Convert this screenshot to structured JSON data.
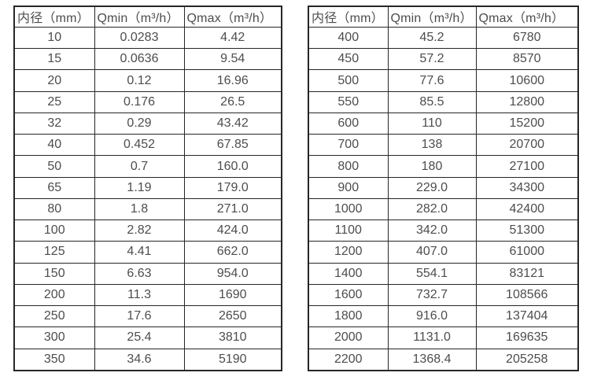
{
  "page": {
    "background": "#ffffff",
    "text_color": "#4d4d4d",
    "border_color": "#262626"
  },
  "chart_data": [
    {
      "type": "table",
      "name": "flow-rate-table-small-diameters",
      "columns": [
        "内径（mm）",
        "Qmin（m³/h）",
        "Qmax（m³/h）"
      ],
      "rows": [
        [
          "10",
          "0.0283",
          "4.42"
        ],
        [
          "15",
          "0.0636",
          "9.54"
        ],
        [
          "20",
          "0.12",
          "16.96"
        ],
        [
          "25",
          "0.176",
          "26.5"
        ],
        [
          "32",
          "0.29",
          "43.42"
        ],
        [
          "40",
          "0.452",
          "67.85"
        ],
        [
          "50",
          "0.7",
          "160.0"
        ],
        [
          "65",
          "1.19",
          "179.0"
        ],
        [
          "80",
          "1.8",
          "271.0"
        ],
        [
          "100",
          "2.82",
          "424.0"
        ],
        [
          "125",
          "4.41",
          "662.0"
        ],
        [
          "150",
          "6.63",
          "954.0"
        ],
        [
          "200",
          "11.3",
          "1690"
        ],
        [
          "250",
          "17.6",
          "2650"
        ],
        [
          "300",
          "25.4",
          "3810"
        ],
        [
          "350",
          "34.6",
          "5190"
        ]
      ]
    },
    {
      "type": "table",
      "name": "flow-rate-table-large-diameters",
      "columns": [
        "内径（mm）",
        "Qmin（m³/h）",
        "Qmax（m³/h）"
      ],
      "rows": [
        [
          "400",
          "45.2",
          "6780"
        ],
        [
          "450",
          "57.2",
          "8570"
        ],
        [
          "500",
          "77.6",
          "10600"
        ],
        [
          "550",
          "85.5",
          "12800"
        ],
        [
          "600",
          "110",
          "15200"
        ],
        [
          "700",
          "138",
          "20700"
        ],
        [
          "800",
          "180",
          "27100"
        ],
        [
          "900",
          "229.0",
          "34300"
        ],
        [
          "1000",
          "282.0",
          "42400"
        ],
        [
          "1100",
          "342.0",
          "51300"
        ],
        [
          "1200",
          "407.0",
          "61000"
        ],
        [
          "1400",
          "554.1",
          "83121"
        ],
        [
          "1600",
          "732.7",
          "108566"
        ],
        [
          "1800",
          "916.0",
          "137404"
        ],
        [
          "2000",
          "1131.0",
          "169635"
        ],
        [
          "2200",
          "1368.4",
          "205258"
        ]
      ]
    }
  ]
}
